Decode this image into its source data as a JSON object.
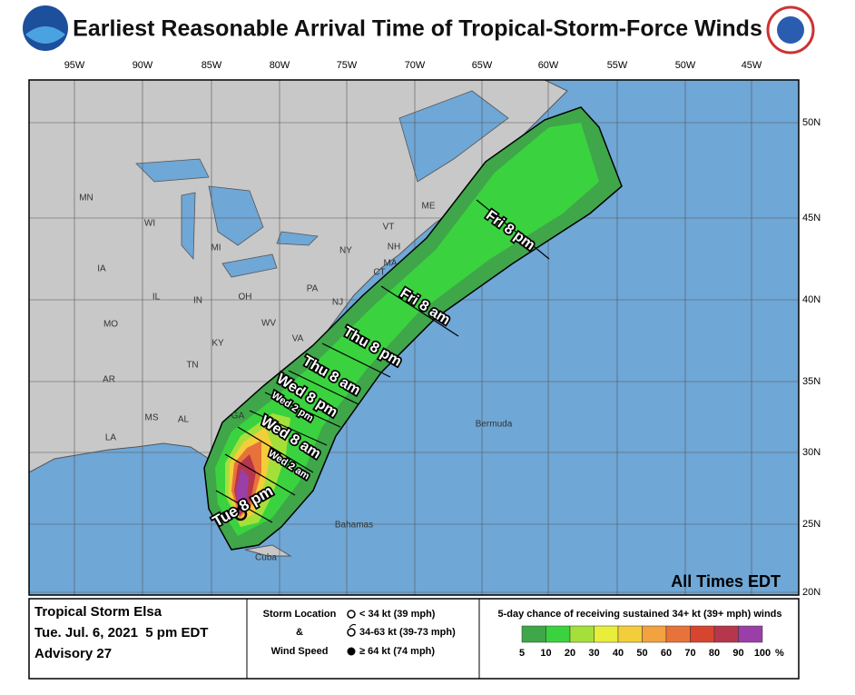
{
  "header": {
    "title": "Earliest Reasonable Arrival Time of Tropical-Storm-Force Winds"
  },
  "map": {
    "longitudes": [
      "95W",
      "90W",
      "85W",
      "80W",
      "75W",
      "70W",
      "65W",
      "60W",
      "55W",
      "50W",
      "45W"
    ],
    "latitudes": [
      "50N",
      "45N",
      "40N",
      "35N",
      "30N",
      "25N",
      "20N"
    ],
    "states": [
      "MN",
      "WI",
      "MI",
      "IA",
      "IL",
      "IN",
      "OH",
      "PA",
      "NY",
      "VT",
      "NH",
      "ME",
      "MA",
      "CT",
      "NJ",
      "MO",
      "KY",
      "WV",
      "VA",
      "TN",
      "AR",
      "MS",
      "AL",
      "GA",
      "LA"
    ],
    "places": [
      "Bermuda",
      "Bahamas",
      "Cuba"
    ],
    "arrival_times": [
      "Tue 8 pm",
      "Wed 2 am",
      "Wed 8 am",
      "Wed 2 pm",
      "Wed 8 pm",
      "Thu 8 am",
      "Thu 8 pm",
      "Fri 8 am",
      "Fri 8 pm"
    ],
    "time_note": "All Times EDT"
  },
  "footer": {
    "storm": "Tropical Storm Elsa",
    "issued": "Tue. Jul. 6, 2021  5 pm EDT",
    "advisory": "Advisory 27",
    "key_title": [
      "Storm Location",
      "&",
      "Wind Speed"
    ],
    "key_items": [
      "< 34 kt (39 mph)",
      "34-63 kt (39-73 mph)",
      "≥ 64 kt (74 mph)"
    ],
    "scale_title": "5-day chance of receiving sustained 34+ kt (39+ mph) winds",
    "scale": [
      5,
      10,
      20,
      30,
      40,
      50,
      60,
      70,
      80,
      90,
      100
    ],
    "scale_unit": "%",
    "scale_colors": [
      "#3fa64a",
      "#3bd23f",
      "#a5e03a",
      "#e8ee3b",
      "#f4cd3a",
      "#f2a23f",
      "#e8733a",
      "#d8452f",
      "#b6364c",
      "#9a3fa8"
    ]
  }
}
